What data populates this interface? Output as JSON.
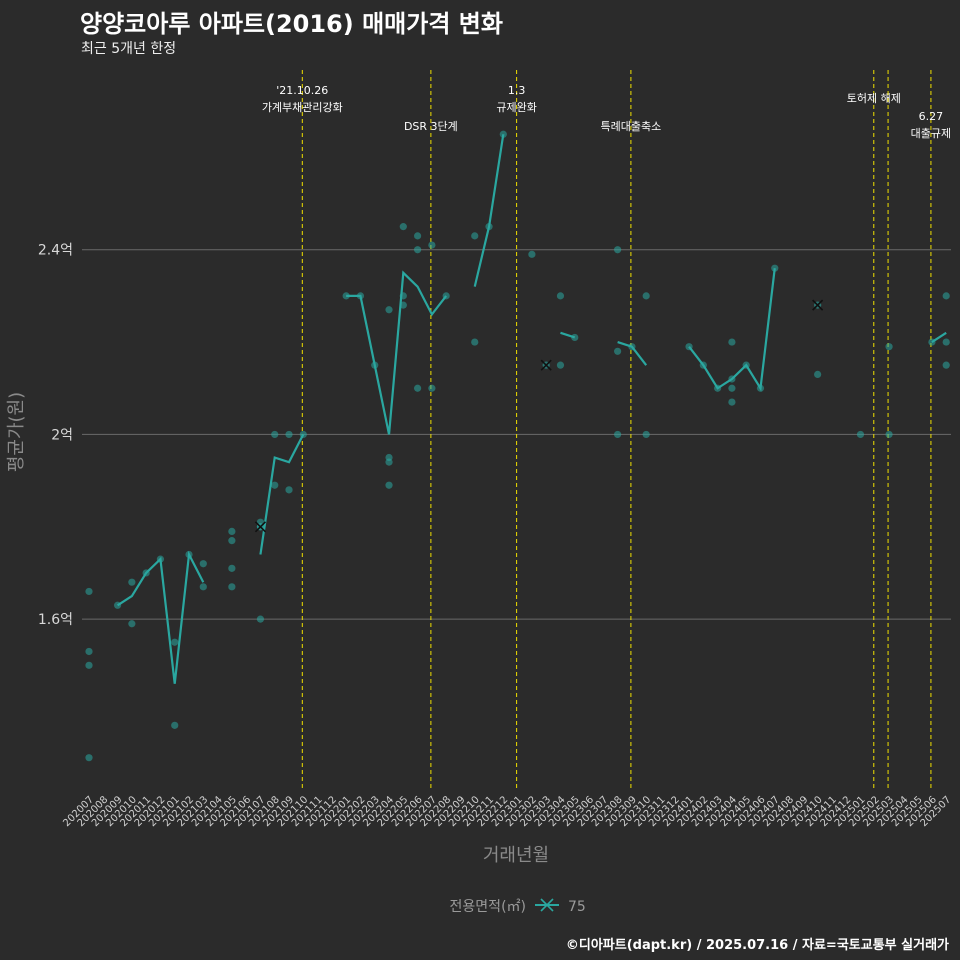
{
  "title": "양양코아루 아파트(2016) 매매가격 변화",
  "subtitle": "최근 5개년 한정",
  "credit": "©디아파트(dapt.kr) / 2025.07.16 / 자료=국토교통부 실거래가",
  "colors": {
    "line": "#2aa7a0",
    "vline": "#f0e000",
    "grid": "#6a6a6a",
    "marker": "#111111"
  },
  "chart_data": {
    "type": "line",
    "xlabel": "거래년월",
    "ylabel": "평균가(원)",
    "ylim": [
      1.23,
      2.8
    ],
    "yticks": [
      {
        "v": 1.6,
        "label": "1.6억"
      },
      {
        "v": 2.0,
        "label": "2억"
      },
      {
        "v": 2.4,
        "label": "2.4억"
      }
    ],
    "categories": [
      "202007",
      "202008",
      "202009",
      "202010",
      "202011",
      "202012",
      "202101",
      "202102",
      "202103",
      "202104",
      "202105",
      "202106",
      "202107",
      "202108",
      "202109",
      "202110",
      "202111",
      "202112",
      "202201",
      "202202",
      "202203",
      "202204",
      "202205",
      "202206",
      "202207",
      "202208",
      "202209",
      "202210",
      "202211",
      "202212",
      "202301",
      "202302",
      "202303",
      "202304",
      "202305",
      "202306",
      "202307",
      "202308",
      "202309",
      "202310",
      "202311",
      "202312",
      "202401",
      "202402",
      "202403",
      "202404",
      "202405",
      "202406",
      "202407",
      "202408",
      "202409",
      "202410",
      "202411",
      "202412",
      "202501",
      "202502",
      "202503",
      "202504",
      "202505",
      "202506",
      "202507"
    ],
    "series": [
      {
        "name": "75",
        "avg": [
          null,
          null,
          1.63,
          1.65,
          1.7,
          1.73,
          1.46,
          1.74,
          1.68,
          null,
          null,
          null,
          1.74,
          1.95,
          1.94,
          2.0,
          null,
          null,
          2.3,
          2.3,
          2.15,
          2.0,
          2.35,
          2.32,
          2.26,
          2.3,
          null,
          2.32,
          2.45,
          2.65,
          null,
          null,
          null,
          2.22,
          2.21,
          null,
          null,
          2.2,
          2.19,
          2.15,
          null,
          null,
          2.19,
          2.15,
          2.1,
          2.12,
          2.15,
          2.1,
          2.36,
          null,
          null,
          null,
          null,
          null,
          null,
          null,
          null,
          null,
          null,
          2.2,
          2.22
        ],
        "points": [
          [
            0,
            1.66
          ],
          [
            0,
            1.53
          ],
          [
            0,
            1.5
          ],
          [
            0,
            1.3
          ],
          [
            2,
            1.63
          ],
          [
            3,
            1.68
          ],
          [
            3,
            1.59
          ],
          [
            4,
            1.7
          ],
          [
            5,
            1.73
          ],
          [
            6,
            1.55
          ],
          [
            6,
            1.37
          ],
          [
            7,
            1.74
          ],
          [
            8,
            1.72
          ],
          [
            8,
            1.67
          ],
          [
            10,
            1.79
          ],
          [
            10,
            1.77
          ],
          [
            10,
            1.71
          ],
          [
            10,
            1.67
          ],
          [
            12,
            1.8
          ],
          [
            12,
            1.81
          ],
          [
            12,
            1.6
          ],
          [
            13,
            2.0
          ],
          [
            13,
            1.89
          ],
          [
            14,
            2.0
          ],
          [
            14,
            1.88
          ],
          [
            15,
            2.0
          ],
          [
            18,
            2.3
          ],
          [
            19,
            2.3
          ],
          [
            20,
            2.15
          ],
          [
            21,
            2.27
          ],
          [
            21,
            1.95
          ],
          [
            21,
            1.94
          ],
          [
            21,
            1.89
          ],
          [
            22,
            2.45
          ],
          [
            22,
            2.3
          ],
          [
            22,
            2.28
          ],
          [
            23,
            2.43
          ],
          [
            23,
            2.4
          ],
          [
            23,
            2.1
          ],
          [
            24,
            2.41
          ],
          [
            24,
            2.1
          ],
          [
            25,
            2.3
          ],
          [
            27,
            2.43
          ],
          [
            27,
            2.2
          ],
          [
            28,
            2.45
          ],
          [
            29,
            2.65
          ],
          [
            31,
            2.39
          ],
          [
            33,
            2.3
          ],
          [
            33,
            2.15
          ],
          [
            34,
            2.21
          ],
          [
            37,
            2.4
          ],
          [
            37,
            2.18
          ],
          [
            37,
            2.0
          ],
          [
            38,
            2.19
          ],
          [
            39,
            2.3
          ],
          [
            39,
            2.0
          ],
          [
            42,
            2.19
          ],
          [
            43,
            2.15
          ],
          [
            44,
            2.1
          ],
          [
            45,
            2.2
          ],
          [
            45,
            2.12
          ],
          [
            45,
            2.1
          ],
          [
            45,
            2.07
          ],
          [
            46,
            2.15
          ],
          [
            47,
            2.1
          ],
          [
            48,
            2.36
          ],
          [
            51,
            2.13
          ],
          [
            54,
            2.0
          ],
          [
            56,
            2.19
          ],
          [
            56,
            2.0
          ],
          [
            59,
            2.2
          ],
          [
            60,
            2.3
          ],
          [
            60,
            2.2
          ],
          [
            60,
            2.15
          ]
        ],
        "xmarkers": [
          [
            12,
            1.8
          ],
          [
            32,
            2.15
          ],
          [
            51,
            2.28
          ]
        ]
      }
    ],
    "events": [
      {
        "x": 15,
        "lines": [
          "'21.10.26",
          "가계부채관리강화"
        ],
        "row": 0
      },
      {
        "x": 24,
        "lines": [
          "DSR 3단계"
        ],
        "row": 2
      },
      {
        "x": 30,
        "lines": [
          "1.3",
          "규제완화"
        ],
        "row": 0
      },
      {
        "x": 38,
        "lines": [
          "특례대출축소"
        ],
        "row": 2
      },
      {
        "x": 55,
        "lines": [
          "토허제 해제"
        ],
        "row": 1
      },
      {
        "x": 56,
        "lines": [],
        "row": 1
      },
      {
        "x": 59,
        "lines": [
          "6.27",
          "대출규제"
        ],
        "row": 3
      }
    ],
    "legend": {
      "title": "전용면적(㎡)",
      "label": "75",
      "position": "bottom"
    }
  }
}
